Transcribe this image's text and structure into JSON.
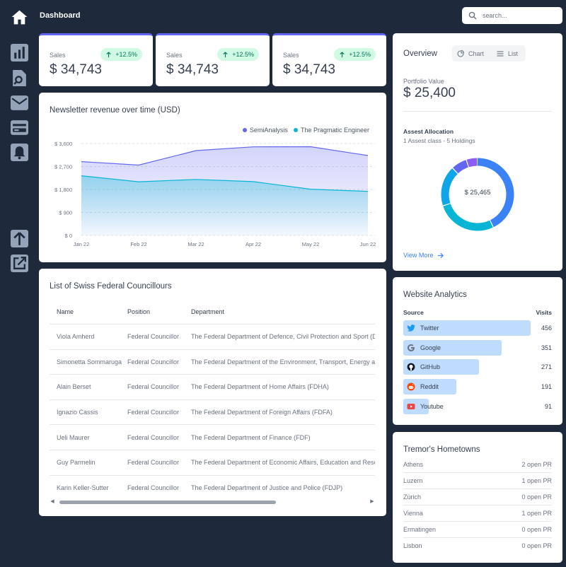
{
  "header": {
    "title": "Dashboard",
    "search_placeholder": "search..."
  },
  "kpis": [
    {
      "label": "Sales",
      "value": "$ 34,743",
      "delta": "+12.5%"
    },
    {
      "label": "Sales",
      "value": "$ 34,743",
      "delta": "+12.5%"
    },
    {
      "label": "Sales",
      "value": "$ 34,743",
      "delta": "+12.5%"
    }
  ],
  "chart_data": {
    "type": "area",
    "title": "Newsletter revenue over time (USD)",
    "categories": [
      "Jan 22",
      "Feb 22",
      "Mar 22",
      "Apr 22",
      "May 22",
      "Jun 22"
    ],
    "y_ticks": [
      "$ 3,600",
      "$ 2,700",
      "$ 1,800",
      "$ 900",
      "$ 0"
    ],
    "ylim": [
      0,
      3600
    ],
    "series": [
      {
        "name": "SemiAnalysis",
        "color": "#6366f1",
        "values": [
          2890,
          2756,
          3322,
          3470,
          3475,
          3129
        ]
      },
      {
        "name": "The Pragmatic Engineer",
        "color": "#06b6d4",
        "values": [
          2338,
          2103,
          2194,
          2108,
          1812,
          1726
        ]
      }
    ]
  },
  "table": {
    "title": "List of Swiss Federal Councillours",
    "columns": [
      "Name",
      "Position",
      "Department"
    ],
    "rows": [
      [
        "Viola Amherd",
        "Federal Councillor",
        "The Federal Department of Defence, Civil Protection and Sport (DDPS)"
      ],
      [
        "Simonetta Sommaruga",
        "Federal Councillor",
        "The Federal Department of the Environment, Transport, Energy and Communications (DETEC)"
      ],
      [
        "Alain Berset",
        "Federal Councillor",
        "The Federal Department of Home Affairs (FDHA)"
      ],
      [
        "Ignazio Cassis",
        "Federal Councillor",
        "The Federal Department of Foreign Affairs (FDFA)"
      ],
      [
        "Ueli Maurer",
        "Federal Councillor",
        "The Federal Department of Finance (FDF)"
      ],
      [
        "Guy Parmelin",
        "Federal Councillor",
        "The Federal Department of Economic Affairs, Education and Research (EAER)"
      ],
      [
        "Karin Keller-Sutter",
        "Federal Councillor",
        "The Federal Department of Justice and Police (FDJP)"
      ]
    ]
  },
  "overview": {
    "title": "Overview",
    "toggle": [
      "Chart",
      "List"
    ],
    "portfolio_label": "Portfolio Value",
    "portfolio_value": "$ 25,400",
    "allocation_title": "Assest Allocation",
    "allocation_sub": "1 Assest class - 5 Holdings",
    "donut_center": "$ 25,465",
    "donut_slices": [
      {
        "color": "#3b82f6",
        "fraction": 0.43
      },
      {
        "color": "#06b6d4",
        "fraction": 0.27
      },
      {
        "color": "#0ea5e9",
        "fraction": 0.18
      },
      {
        "color": "#6366f1",
        "fraction": 0.07
      },
      {
        "color": "#8b5cf6",
        "fraction": 0.05
      }
    ],
    "view_more": "View More"
  },
  "analytics": {
    "title": "Website Analytics",
    "col_source": "Source",
    "col_visits": "Visits",
    "items": [
      {
        "name": "Twitter",
        "visits": "456",
        "value": 456,
        "icon": "twitter-icon"
      },
      {
        "name": "Google",
        "visits": "351",
        "value": 351,
        "icon": "google-icon"
      },
      {
        "name": "GitHub",
        "visits": "271",
        "value": 271,
        "icon": "github-icon"
      },
      {
        "name": "Reddit",
        "visits": "191",
        "value": 191,
        "icon": "reddit-icon"
      },
      {
        "name": "Youtube",
        "visits": "91",
        "value": 91,
        "icon": "youtube-icon"
      }
    ]
  },
  "hometowns": {
    "title": "Tremor's Hometowns",
    "items": [
      {
        "city": "Athens",
        "prs": "2 open PR"
      },
      {
        "city": "Luzern",
        "prs": "1 open PR"
      },
      {
        "city": "Zürich",
        "prs": "0 open PR"
      },
      {
        "city": "Vienna",
        "prs": "1 open PR"
      },
      {
        "city": "Ermatingen",
        "prs": "0 open PR"
      },
      {
        "city": "Lisbon",
        "prs": "0 open PR"
      }
    ]
  }
}
